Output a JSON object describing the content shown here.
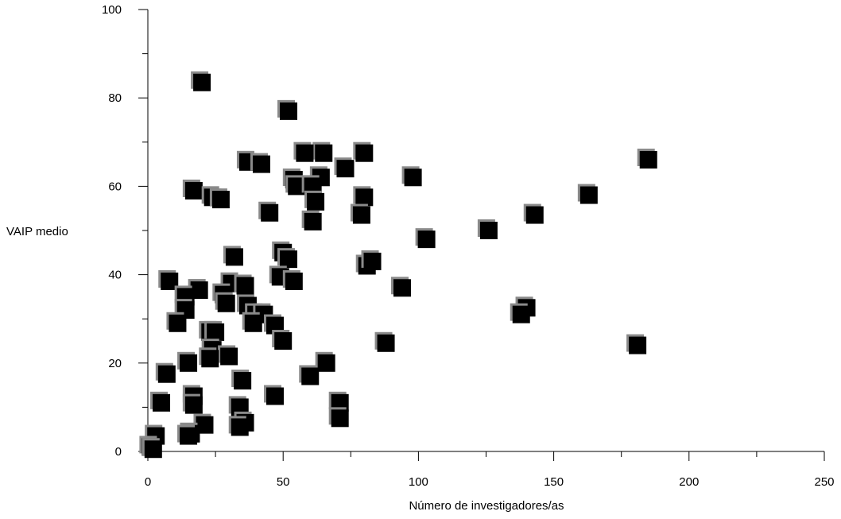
{
  "chart_data": {
    "type": "scatter",
    "title": "",
    "xlabel": "Número de investigadores/as",
    "ylabel": "VAIP medio",
    "xlim": [
      0,
      250
    ],
    "ylim": [
      0,
      100
    ],
    "x_ticks": [
      0,
      50,
      100,
      150,
      200,
      250
    ],
    "y_ticks": [
      0,
      20,
      40,
      60,
      80,
      100
    ],
    "x_tick_labels": [
      "0",
      "50",
      "100",
      "150",
      "200",
      "250"
    ],
    "y_tick_labels": [
      "0",
      "20",
      "40",
      "60",
      "80",
      "100"
    ],
    "grid": false,
    "legend": "none",
    "marker": "square",
    "marker_color": "#000000",
    "series": [
      {
        "points": [
          [
            20,
            83.5
          ],
          [
            52,
            77
          ],
          [
            185,
            66
          ],
          [
            80,
            67.5
          ],
          [
            65,
            67.5
          ],
          [
            58,
            67.5
          ],
          [
            37,
            65.5
          ],
          [
            42,
            65
          ],
          [
            73,
            64
          ],
          [
            98,
            62
          ],
          [
            54,
            61.5
          ],
          [
            64,
            62
          ],
          [
            55,
            60
          ],
          [
            61,
            60
          ],
          [
            17,
            59
          ],
          [
            163,
            58
          ],
          [
            24,
            57.5
          ],
          [
            27,
            57
          ],
          [
            80,
            57.5
          ],
          [
            62,
            56.5
          ],
          [
            45,
            54
          ],
          [
            79,
            53.5
          ],
          [
            143,
            53.5
          ],
          [
            61,
            52
          ],
          [
            126,
            50
          ],
          [
            103,
            48
          ],
          [
            50,
            45
          ],
          [
            52,
            43.5
          ],
          [
            32,
            44
          ],
          [
            81,
            42
          ],
          [
            83,
            43
          ],
          [
            49,
            39.5
          ],
          [
            54,
            38.5
          ],
          [
            8,
            38.5
          ],
          [
            31,
            38
          ],
          [
            36,
            37.5
          ],
          [
            94,
            37
          ],
          [
            19,
            36.5
          ],
          [
            28,
            35.5
          ],
          [
            14,
            35
          ],
          [
            29,
            33.5
          ],
          [
            37,
            33
          ],
          [
            14,
            32
          ],
          [
            140,
            32.5
          ],
          [
            138,
            31
          ],
          [
            40,
            31
          ],
          [
            43,
            31
          ],
          [
            39,
            29
          ],
          [
            11,
            29
          ],
          [
            47,
            28.5
          ],
          [
            23,
            27
          ],
          [
            25,
            27
          ],
          [
            88,
            24.5
          ],
          [
            50,
            25
          ],
          [
            181,
            24
          ],
          [
            24,
            23
          ],
          [
            30,
            21.5
          ],
          [
            23,
            21
          ],
          [
            15,
            20
          ],
          [
            66,
            20
          ],
          [
            7,
            17.5
          ],
          [
            35,
            16
          ],
          [
            60,
            17
          ],
          [
            47,
            12.5
          ],
          [
            17,
            12.5
          ],
          [
            5,
            11
          ],
          [
            17,
            10.5
          ],
          [
            71,
            11
          ],
          [
            34,
            10
          ],
          [
            71,
            7.5
          ],
          [
            36,
            6.5
          ],
          [
            21,
            6
          ],
          [
            34,
            5.5
          ],
          [
            16,
            4
          ],
          [
            15,
            3.5
          ],
          [
            3,
            3.5
          ],
          [
            1,
            1
          ],
          [
            2,
            0.5
          ]
        ]
      }
    ]
  }
}
